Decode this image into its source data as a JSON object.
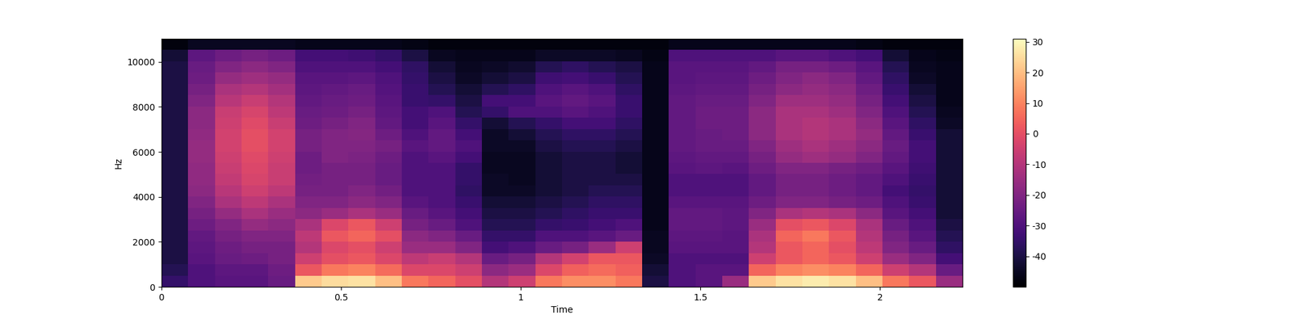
{
  "chart_data": {
    "type": "heatmap",
    "x_label": "Time",
    "y_label": "Hz",
    "xlim": [
      0,
      2.23
    ],
    "xticks": [
      0,
      0.5,
      1,
      1.5,
      2
    ],
    "ylim": [
      0,
      11025
    ],
    "yticks": [
      0,
      2000,
      4000,
      6000,
      8000,
      10000
    ],
    "color": "magma",
    "colorbar": {
      "range": [
        -50,
        31
      ],
      "ticks": [
        -40,
        -30,
        -20,
        -10,
        0,
        10,
        20,
        30
      ]
    },
    "cells": [
      [
        -35,
        -38,
        -40,
        -40,
        -40,
        -40,
        -40,
        -40,
        -40,
        -40,
        -40,
        -40,
        -40,
        -40,
        -40,
        -40,
        -40,
        -40,
        -40,
        -40,
        -42,
        -48
      ],
      [
        -30,
        -30,
        -28,
        -27,
        -26,
        -24,
        -22,
        -20,
        -18,
        -17,
        -17,
        -16,
        -16,
        -17,
        -18,
        -18,
        -20,
        -22,
        -24,
        -25,
        -27,
        -45
      ],
      [
        -28,
        -27,
        -25,
        -24,
        -22,
        -20,
        -16,
        -12,
        -9,
        -7,
        -6,
        -5,
        -4,
        -4,
        -5,
        -6,
        -9,
        -12,
        -16,
        -20,
        -24,
        -45
      ],
      [
        -28,
        -27,
        -24,
        -22,
        -20,
        -16,
        -12,
        -8,
        -5,
        -3,
        -2,
        -1,
        0,
        0,
        -1,
        -3,
        -6,
        -10,
        -14,
        -18,
        -22,
        -45
      ],
      [
        -25,
        -24,
        -22,
        -22,
        -20,
        -18,
        -15,
        -12,
        -8,
        -6,
        -6,
        -5,
        -4,
        -4,
        -6,
        -8,
        -10,
        -13,
        -16,
        -20,
        -24,
        -45
      ],
      [
        22,
        2,
        -5,
        -10,
        -8,
        -12,
        -18,
        -20,
        -22,
        -23,
        -24,
        -24,
        -22,
        -22,
        -24,
        -25,
        -26,
        -27,
        -28,
        -30,
        -32,
        -46
      ],
      [
        25,
        8,
        0,
        -2,
        2,
        -2,
        -15,
        -20,
        -22,
        -22,
        -22,
        -20,
        -20,
        -20,
        -22,
        -24,
        -25,
        -26,
        -28,
        -30,
        -32,
        -46
      ],
      [
        26,
        10,
        2,
        0,
        5,
        2,
        -12,
        -18,
        -20,
        -22,
        -22,
        -21,
        -20,
        -19,
        -20,
        -22,
        -24,
        -25,
        -27,
        -30,
        -33,
        -46
      ],
      [
        20,
        6,
        -2,
        -5,
        0,
        -5,
        -15,
        -20,
        -23,
        -25,
        -25,
        -24,
        -22,
        -24,
        -26,
        -27,
        -28,
        -29,
        -30,
        -32,
        -35,
        -46
      ],
      [
        8,
        -2,
        -8,
        -15,
        -18,
        -22,
        -25,
        -28,
        -30,
        -30,
        -30,
        -30,
        -28,
        -30,
        -32,
        -32,
        -34,
        -34,
        -35,
        -36,
        -40,
        -47
      ],
      [
        5,
        -2,
        -6,
        -15,
        -20,
        -25,
        -28,
        -30,
        -30,
        -30,
        -30,
        -28,
        -26,
        -26,
        -28,
        -30,
        -35,
        -38,
        -40,
        -42,
        -45,
        -48
      ],
      [
        0,
        -5,
        -10,
        -20,
        -25,
        -30,
        -32,
        -34,
        -36,
        -35,
        -35,
        -32,
        -30,
        -32,
        -35,
        -38,
        -40,
        -42,
        -44,
        -45,
        -46,
        -48
      ],
      [
        -10,
        -18,
        -25,
        -32,
        -35,
        -38,
        -40,
        -42,
        -44,
        -44,
        -45,
        -45,
        -44,
        -44,
        -42,
        -35,
        -32,
        -38,
        -42,
        -44,
        -46,
        -48
      ],
      [
        -5,
        -15,
        -22,
        -30,
        -35,
        -38,
        -40,
        -42,
        -44,
        -45,
        -45,
        -45,
        -44,
        -42,
        -38,
        -30,
        -32,
        -36,
        -40,
        -43,
        -46,
        -48
      ],
      [
        8,
        -2,
        -10,
        -25,
        -30,
        -35,
        -38,
        -40,
        -42,
        -42,
        -42,
        -42,
        -40,
        -38,
        -35,
        -30,
        -28,
        -30,
        -33,
        -38,
        -44,
        -48
      ],
      [
        12,
        4,
        -4,
        -22,
        -30,
        -34,
        -36,
        -38,
        -40,
        -40,
        -40,
        -40,
        -38,
        -36,
        -32,
        -28,
        -26,
        -28,
        -32,
        -36,
        -44,
        -48
      ],
      [
        12,
        6,
        2,
        -15,
        -28,
        -32,
        -34,
        -36,
        -38,
        -40,
        -40,
        -40,
        -38,
        -36,
        -32,
        -30,
        -28,
        -30,
        -34,
        -38,
        -44,
        -48
      ],
      [
        8,
        4,
        2,
        -5,
        -25,
        -30,
        -34,
        -36,
        -38,
        -40,
        -42,
        -42,
        -40,
        -38,
        -36,
        -34,
        -34,
        -36,
        -38,
        -40,
        -45,
        -48
      ],
      [
        -40,
        -42,
        -44,
        -45,
        -45,
        -46,
        -46,
        -46,
        -46,
        -46,
        -46,
        -46,
        -46,
        -46,
        -46,
        -46,
        -46,
        -46,
        -46,
        -46,
        -47,
        -48
      ],
      [
        -30,
        -30,
        -30,
        -28,
        -27,
        -26,
        -26,
        -28,
        -30,
        -30,
        -28,
        -27,
        -26,
        -26,
        -26,
        -26,
        -26,
        -27,
        -28,
        -28,
        -30,
        -46
      ],
      [
        -28,
        -28,
        -30,
        -28,
        -27,
        -26,
        -26,
        -28,
        -30,
        -30,
        -27,
        -26,
        -25,
        -25,
        -24,
        -24,
        -25,
        -26,
        -27,
        -28,
        -30,
        -46
      ],
      [
        -15,
        -28,
        -30,
        -28,
        -28,
        -27,
        -27,
        -28,
        -30,
        -30,
        -28,
        -26,
        -25,
        -24,
        -24,
        -24,
        -25,
        -26,
        -27,
        -28,
        -30,
        -46
      ],
      [
        22,
        5,
        -5,
        -10,
        -12,
        -15,
        -20,
        -24,
        -26,
        -26,
        -24,
        -22,
        -20,
        -18,
        -18,
        -18,
        -20,
        -22,
        -24,
        -26,
        -30,
        -46
      ],
      [
        26,
        10,
        2,
        2,
        5,
        0,
        -12,
        -20,
        -22,
        -22,
        -20,
        -16,
        -14,
        -12,
        -12,
        -12,
        -14,
        -18,
        -20,
        -22,
        -28,
        -46
      ],
      [
        28,
        12,
        5,
        5,
        8,
        2,
        -10,
        -20,
        -22,
        -22,
        -20,
        -14,
        -12,
        -10,
        -10,
        -12,
        -14,
        -16,
        -18,
        -22,
        -28,
        -46
      ],
      [
        26,
        10,
        2,
        0,
        2,
        -2,
        -12,
        -22,
        -24,
        -24,
        -22,
        -16,
        -14,
        -12,
        -12,
        -14,
        -16,
        -18,
        -20,
        -24,
        -30,
        -46
      ],
      [
        20,
        5,
        -5,
        -8,
        -10,
        -12,
        -18,
        -24,
        -26,
        -26,
        -24,
        -20,
        -18,
        -16,
        -18,
        -20,
        -22,
        -24,
        -26,
        -28,
        -32,
        -47
      ],
      [
        8,
        -5,
        -15,
        -20,
        -22,
        -25,
        -28,
        -30,
        -32,
        -30,
        -28,
        -26,
        -25,
        -26,
        -28,
        -30,
        -32,
        -34,
        -36,
        -38,
        -42,
        -48
      ],
      [
        2,
        -10,
        -20,
        -25,
        -28,
        -30,
        -32,
        -34,
        -35,
        -34,
        -33,
        -32,
        -32,
        -34,
        -36,
        -38,
        -40,
        -42,
        -44,
        -45,
        -46,
        -48
      ],
      [
        -15,
        -25,
        -32,
        -36,
        -38,
        -40,
        -42,
        -42,
        -42,
        -42,
        -42,
        -42,
        -42,
        -42,
        -44,
        -45,
        -46,
        -46,
        -46,
        -46,
        -47,
        -48
      ]
    ]
  }
}
